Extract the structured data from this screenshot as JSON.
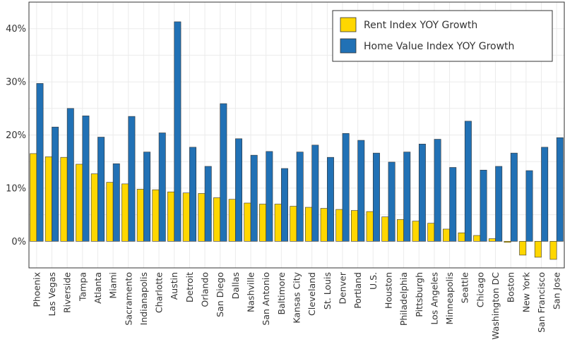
{
  "chart_data": {
    "type": "bar",
    "categories": [
      "Phoenix",
      "Las Vegas",
      "Riverside",
      "Tampa",
      "Atlanta",
      "Miami",
      "Sacramento",
      "Indianapolis",
      "Charlotte",
      "Austin",
      "Detroit",
      "Orlando",
      "San Diego",
      "Dallas",
      "Nashville",
      "San Antonio",
      "Baltimore",
      "Kansas City",
      "Cleveland",
      "St. Louis",
      "Denver",
      "Portland",
      "U.S.",
      "Houston",
      "Philadelphia",
      "Pittsburgh",
      "Los Angeles",
      "Minneapolis",
      "Seattle",
      "Chicago",
      "Washington DC",
      "Boston",
      "New York",
      "San Francisco",
      "San Jose"
    ],
    "series": [
      {
        "name": "Rent Index YOY Growth",
        "color": "#FFD700",
        "values": [
          16.5,
          15.9,
          15.8,
          14.5,
          12.7,
          11.1,
          10.8,
          9.8,
          9.7,
          9.3,
          9.1,
          9.0,
          8.2,
          7.9,
          7.2,
          7.0,
          7.0,
          6.6,
          6.4,
          6.2,
          6.0,
          5.8,
          5.6,
          4.6,
          4.1,
          3.8,
          3.4,
          2.3,
          1.6,
          1.1,
          0.5,
          -0.2,
          -2.6,
          -3.0,
          -3.4
        ]
      },
      {
        "name": "Home Value Index YOY Growth",
        "color": "#2171B5",
        "values": [
          29.7,
          21.5,
          25.0,
          23.6,
          19.6,
          14.6,
          23.5,
          16.8,
          20.4,
          41.3,
          17.7,
          14.1,
          25.9,
          19.3,
          16.2,
          16.9,
          13.7,
          16.8,
          18.1,
          15.8,
          20.3,
          19.0,
          16.6,
          14.9,
          16.8,
          18.3,
          19.2,
          13.9,
          22.6,
          13.4,
          14.1,
          16.6,
          13.3,
          17.7,
          19.5
        ]
      }
    ],
    "ylim": [
      -5,
      45
    ],
    "yticks": [
      0,
      10,
      20,
      30,
      40
    ],
    "ytick_labels": [
      "0%",
      "10%",
      "20%",
      "30%",
      "40%"
    ],
    "grid": true,
    "legend_position": "top-right",
    "title": "",
    "xlabel": "",
    "ylabel": ""
  }
}
